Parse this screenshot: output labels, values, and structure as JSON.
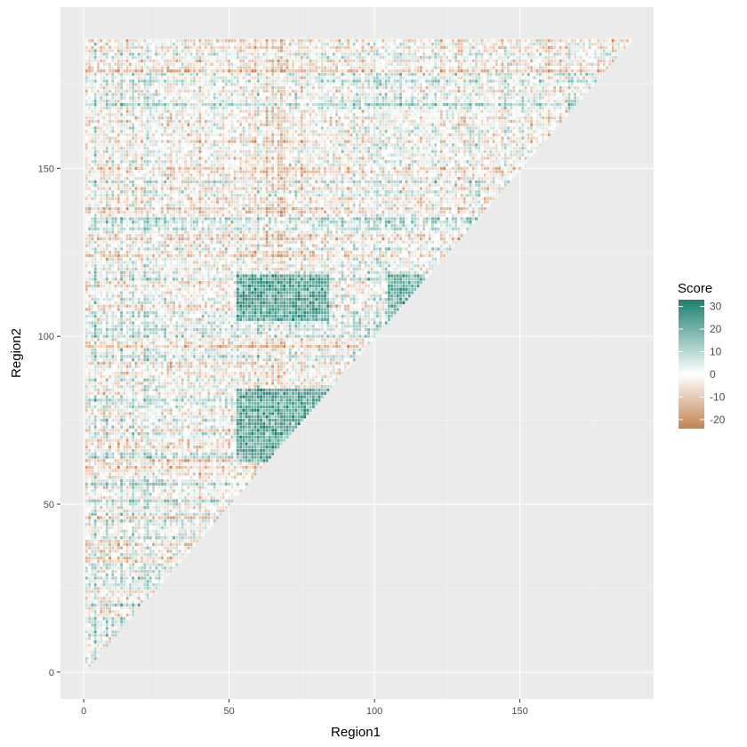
{
  "chart_data": {
    "type": "heatmap",
    "title": "",
    "xlabel": "Region1",
    "ylabel": "Region2",
    "xlim": [
      -8,
      196
    ],
    "ylim": [
      -8,
      198
    ],
    "x_ticks": [
      0,
      50,
      100,
      150
    ],
    "y_ticks": [
      0,
      50,
      100,
      150
    ],
    "n_regions": 188,
    "grid": true,
    "panel_background": "#ebebeb",
    "tile_border_color": "#ffffff",
    "description_of_fill": "upper-triangle matrix (Region2 >= Region1); strong positive blocks at Region1 53-84 x Region2 63-84 and 105-118, and Region1 105-117 x Region2 105-118",
    "blocks": [
      {
        "x": [
          53,
          84
        ],
        "y": [
          63,
          84
        ],
        "mean_score": 22
      },
      {
        "x": [
          53,
          84
        ],
        "y": [
          105,
          118
        ],
        "mean_score": 22
      },
      {
        "x": [
          105,
          117
        ],
        "y": [
          105,
          118
        ],
        "mean_score": 20
      }
    ],
    "legend": {
      "title": "Score",
      "position": "right",
      "ticks": [
        30,
        20,
        10,
        0,
        -10,
        -20
      ],
      "range": [
        -24,
        33
      ],
      "colors": {
        "low": "#c4824f",
        "mid": "#ffffff",
        "high": "#1a7f6e"
      }
    }
  }
}
